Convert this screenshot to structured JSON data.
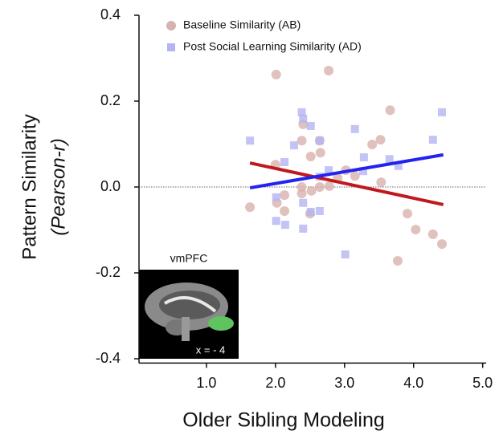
{
  "chart_data": {
    "type": "scatter",
    "x_label": "Older Sibling Modeling",
    "y_label": "Pattern Similarity",
    "y_label_sub": "(Pearson-r)",
    "inset_title": "vmPFC",
    "inset_label": "x = - 4",
    "xlim": [
      0,
      5.05
    ],
    "ylim": [
      -0.41,
      0.4
    ],
    "xticks": [
      {
        "value": 1,
        "label": "1.0"
      },
      {
        "value": 2,
        "label": "2.0"
      },
      {
        "value": 3,
        "label": "3.0"
      },
      {
        "value": 4,
        "label": "4.0"
      },
      {
        "value": 5,
        "label": "5.0"
      }
    ],
    "yticks": [
      {
        "value": 0.4,
        "label": "0.4"
      },
      {
        "value": 0.2,
        "label": "0.2"
      },
      {
        "value": 0,
        "label": "0.0"
      },
      {
        "value": -0.2,
        "label": "-0.2"
      },
      {
        "value": -0.4,
        "label": "-0.4"
      }
    ],
    "reference_line": 0,
    "legend": "upper left",
    "series": [
      {
        "name": "Baseline Similarity (AB)",
        "color": "#d8b2ae",
        "marker": "circle",
        "x": [
          1.63,
          2.01,
          2.0,
          2.02,
          2.13,
          2.13,
          2.38,
          2.38,
          2.4,
          2.38,
          2.5,
          2.51,
          2.52,
          2.64,
          2.65,
          2.64,
          2.77,
          2.78,
          2.9,
          3.02,
          3.15,
          3.4,
          3.52,
          3.66,
          3.77,
          3.91,
          4.03,
          4.28,
          4.41,
          3.53
        ],
        "values": [
          -0.047,
          0.262,
          0.052,
          -0.037,
          -0.019,
          -0.056,
          0,
          -0.015,
          0.146,
          0.108,
          -0.062,
          0.071,
          -0.009,
          0.108,
          0.08,
          0,
          0.271,
          0.002,
          0.021,
          0.039,
          0.026,
          0.099,
          0.11,
          0.179,
          -0.172,
          -0.062,
          -0.099,
          -0.11,
          -0.133,
          0.011
        ],
        "fit": {
          "color": "#c0181e",
          "x": [
            1.63,
            4.43
          ],
          "values": [
            0.056,
            -0.041
          ]
        }
      },
      {
        "name": "Post Social Learning Similarity (AD)",
        "color": "#b4b4f4",
        "marker": "square",
        "x": [
          1.63,
          2.01,
          2.01,
          2.14,
          2.13,
          2.27,
          2.38,
          2.4,
          2.4,
          2.4,
          2.51,
          2.51,
          2.64,
          2.64,
          2.64,
          2.77,
          3.01,
          3.15,
          3.27,
          3.28,
          3.78,
          3.65,
          4.28,
          4.41
        ],
        "values": [
          0.108,
          -0.024,
          -0.079,
          -0.088,
          0.058,
          0.097,
          0.174,
          0.159,
          -0.037,
          -0.097,
          0.142,
          -0.058,
          0.108,
          0.024,
          -0.056,
          0.039,
          -0.157,
          0.135,
          0.037,
          0.069,
          0.049,
          0.065,
          0.11,
          0.174
        ],
        "fit": {
          "color": "#2323f0",
          "x": [
            1.63,
            4.43
          ],
          "values": [
            -0.002,
            0.075
          ]
        }
      }
    ]
  }
}
